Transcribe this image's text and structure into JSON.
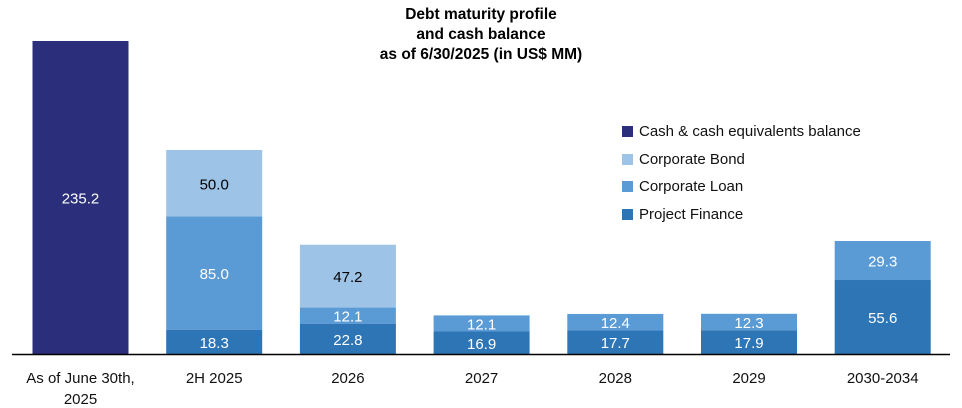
{
  "chart_data": {
    "type": "bar",
    "title_lines": [
      "Debt maturity profile",
      "and cash balance",
      "as of 6/30/2025 (in US$ MM)"
    ],
    "categories": [
      "As of June 30th, 2025",
      "2H 2025",
      "2026",
      "2027",
      "2028",
      "2029",
      "2030-2034"
    ],
    "category_lines": [
      [
        "As of June 30th,",
        "2025"
      ],
      [
        "2H 2025"
      ],
      [
        "2026"
      ],
      [
        "2027"
      ],
      [
        "2028"
      ],
      [
        "2029"
      ],
      [
        "2030-2034"
      ]
    ],
    "stacked": true,
    "series": [
      {
        "name": "Cash & cash equivalents balance",
        "color": "#2b2e7a",
        "values": [
          235.2,
          null,
          null,
          null,
          null,
          null,
          null
        ]
      },
      {
        "name": "Project Finance",
        "color": "#2e75b6",
        "values": [
          null,
          18.3,
          22.8,
          16.9,
          17.7,
          17.9,
          55.6
        ]
      },
      {
        "name": "Corporate Loan",
        "color": "#5b9bd5",
        "values": [
          null,
          85.0,
          12.1,
          12.1,
          12.4,
          12.3,
          29.3
        ]
      },
      {
        "name": "Corporate Bond",
        "color": "#9dc3e6",
        "values": [
          null,
          50.0,
          47.2,
          null,
          null,
          null,
          null
        ]
      }
    ],
    "legend_order": [
      "Cash & cash equivalents balance",
      "Corporate Bond",
      "Corporate Loan",
      "Project Finance"
    ],
    "legend_position": "right",
    "ylim": [
      0,
      235.2
    ],
    "grid": false,
    "label_color": "#ffffff",
    "label_color_light": "#000000"
  }
}
